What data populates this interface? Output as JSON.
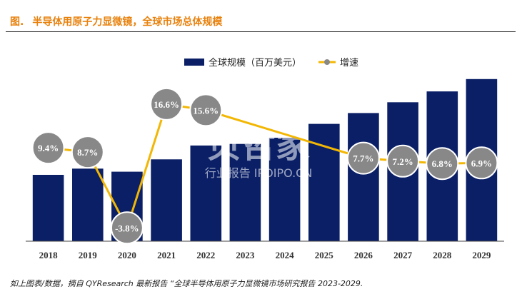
{
  "header": {
    "prefix": "图.",
    "title": "半导体用原子力显微镜，全球市场总体规模"
  },
  "source": "如上图表/数据，摘自 QYResearch 最新报告 “全球半导体用原子力显微镜市场研究报告 2023-2029.",
  "watermark": {
    "main": "贝哲家",
    "sub": "行业报告 IPOIPO.CN"
  },
  "colors": {
    "bar": "#0a1f66",
    "line": "#f2b705",
    "marker": "#888888",
    "accent": "#e8810c"
  },
  "chart_data": {
    "type": "bar",
    "categories": [
      "2018",
      "2019",
      "2020",
      "2021",
      "2022",
      "2023",
      "2024",
      "2025",
      "2026",
      "2027",
      "2028",
      "2029"
    ],
    "legend": {
      "placement": "top",
      "bar_label": "全球规模（百万美元）",
      "line_label": "增速"
    },
    "series": [
      {
        "name": "全球规模（百万美元）",
        "type": "bar",
        "values": [
          43,
          47,
          45,
          53,
          62,
          63,
          67,
          76,
          83,
          90,
          97,
          105
        ]
      },
      {
        "name": "增速",
        "type": "line",
        "values": [
          9.4,
          8.7,
          -3.8,
          16.6,
          15.6,
          null,
          null,
          null,
          7.7,
          7.2,
          6.8,
          6.9
        ],
        "labels": [
          "9.4%",
          "8.7%",
          "-3.8%",
          "16.6%",
          "15.6%",
          "",
          "",
          "",
          "7.7%",
          "7.2%",
          "6.8%",
          "6.9%"
        ]
      }
    ],
    "bar_ylim": [
      0,
      110
    ],
    "growth_ylim": [
      -6,
      22
    ]
  }
}
